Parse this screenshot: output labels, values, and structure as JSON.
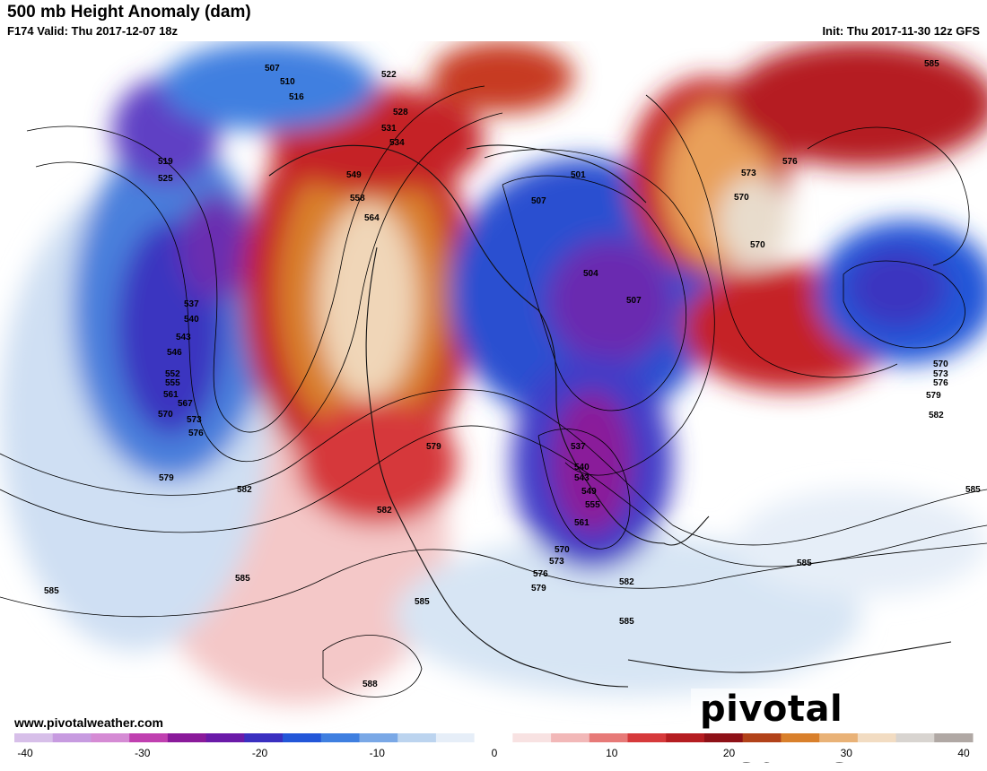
{
  "header": {
    "title": "500 mb Height Anomaly (dam)",
    "valid": "F174 Valid: Thu 2017-12-07 18z",
    "init": "Init: Thu 2017-11-30 12z GFS"
  },
  "footer": {
    "site": "www.pivotalweather.com",
    "brand": "pivotal weather"
  },
  "colorbar": {
    "ticks": [
      "-40",
      "-30",
      "-20",
      "-10",
      "0",
      "10",
      "20",
      "30",
      "40"
    ],
    "colors": [
      "#d7bfe9",
      "#c79be0",
      "#d58bd4",
      "#c040b0",
      "#8a1a9a",
      "#6a1aa8",
      "#3a2fc0",
      "#2356d8",
      "#3f7fe0",
      "#7aa8e6",
      "#bcd4ef",
      "#e6eef8",
      "#ffffff",
      "#f8e2e2",
      "#f2b8b8",
      "#e77a78",
      "#d6393b",
      "#b51d21",
      "#8e1117",
      "#b2421a",
      "#d9802c",
      "#e9b277",
      "#f2dcc2",
      "#d8d4d0",
      "#b0a8a4"
    ]
  },
  "contour_labels": [
    "507",
    "510",
    "516",
    "519",
    "522",
    "525",
    "528",
    "531",
    "534",
    "537",
    "540",
    "543",
    "546",
    "549",
    "552",
    "555",
    "558",
    "561",
    "564",
    "567",
    "570",
    "573",
    "576",
    "579",
    "582",
    "585",
    "588",
    "501",
    "504"
  ],
  "anomaly_colors": {
    "ridge_strong": "#d9802c",
    "ridge": "#b51d21",
    "ridge_weak": "#f2b8b8",
    "trough_strong": "#8a1a9a",
    "trough": "#2356d8",
    "trough_weak": "#bcd4ef"
  }
}
